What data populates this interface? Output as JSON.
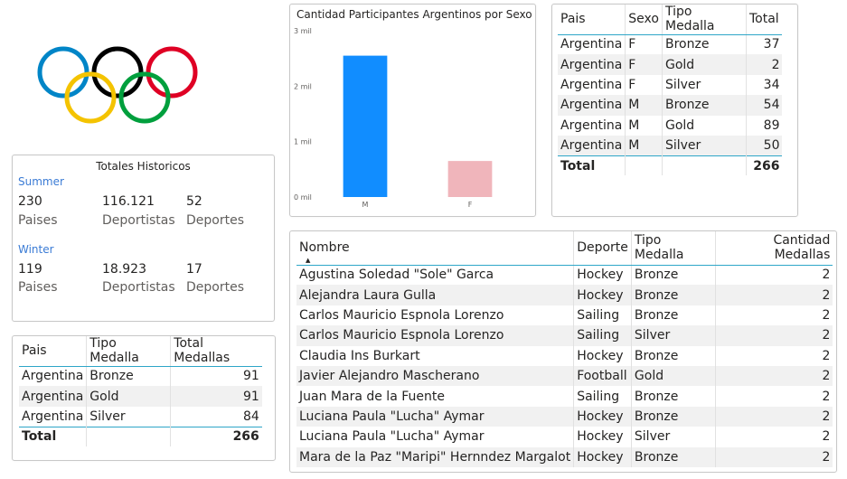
{
  "totales": {
    "title": "Totales Historicos",
    "summer": {
      "label": "Summer",
      "paises": "230",
      "paises_label": "Paises",
      "deportistas": "116.121",
      "deportistas_label": "Deportistas",
      "deportes": "52",
      "deportes_label": "Deportes"
    },
    "winter": {
      "label": "Winter",
      "paises": "119",
      "paises_label": "Paises",
      "deportistas": "18.923",
      "deportistas_label": "Deportistas",
      "deportes": "17",
      "deportes_label": "Deportes"
    }
  },
  "medals_table": {
    "headers": [
      "Pais",
      "Tipo Medalla",
      "Total Medallas"
    ],
    "rows": [
      [
        "Argentina",
        "Bronze",
        "91"
      ],
      [
        "Argentina",
        "Gold",
        "91"
      ],
      [
        "Argentina",
        "Silver",
        "84"
      ]
    ],
    "total_label": "Total",
    "total_value": "266"
  },
  "chart_data": {
    "type": "bar",
    "title": "Cantidad Participantes Argentinos por Sexo",
    "categories": [
      "M",
      "F"
    ],
    "values": [
      2550,
      650
    ],
    "ylim": [
      0,
      3000
    ],
    "yticks": [
      0,
      1000,
      2000,
      3000
    ],
    "ytick_labels": [
      "0 mil",
      "1 mil",
      "2 mil",
      "3 mil"
    ],
    "colors": [
      "#118DFF",
      "#F0B5BB"
    ],
    "xlabel": "",
    "ylabel": "",
    "grid": false
  },
  "sex_table": {
    "headers": [
      "Pais",
      "Sexo",
      "Tipo Medalla",
      "Total"
    ],
    "rows": [
      [
        "Argentina",
        "F",
        "Bronze",
        "37"
      ],
      [
        "Argentina",
        "F",
        "Gold",
        "2"
      ],
      [
        "Argentina",
        "F",
        "Silver",
        "34"
      ],
      [
        "Argentina",
        "M",
        "Bronze",
        "54"
      ],
      [
        "Argentina",
        "M",
        "Gold",
        "89"
      ],
      [
        "Argentina",
        "M",
        "Silver",
        "50"
      ]
    ],
    "total_label": "Total",
    "total_value": "266"
  },
  "athletes_table": {
    "headers": [
      "Nombre",
      "Deporte",
      "Tipo Medalla",
      "Cantidad Medallas"
    ],
    "sort_icon": "sort-ascending-icon",
    "rows": [
      [
        "Agustina Soledad \"Sole\" Garca",
        "Hockey",
        "Bronze",
        "2"
      ],
      [
        "Alejandra Laura Gulla",
        "Hockey",
        "Bronze",
        "2"
      ],
      [
        "Carlos Mauricio Espnola Lorenzo",
        "Sailing",
        "Bronze",
        "2"
      ],
      [
        "Carlos Mauricio Espnola Lorenzo",
        "Sailing",
        "Silver",
        "2"
      ],
      [
        "Claudia Ins Burkart",
        "Hockey",
        "Bronze",
        "2"
      ],
      [
        "Javier Alejandro Mascherano",
        "Football",
        "Gold",
        "2"
      ],
      [
        "Juan Mara de la Fuente",
        "Sailing",
        "Bronze",
        "2"
      ],
      [
        "Luciana Paula \"Lucha\" Aymar",
        "Hockey",
        "Bronze",
        "2"
      ],
      [
        "Luciana Paula \"Lucha\" Aymar",
        "Hockey",
        "Silver",
        "2"
      ],
      [
        "Mara de la Paz \"Maripi\" Hernndez Margalot",
        "Hockey",
        "Bronze",
        "2"
      ]
    ]
  },
  "logo": {
    "icon": "olympic-rings-icon",
    "colors": [
      "#0085C7",
      "#000000",
      "#DF0024",
      "#F4C300",
      "#009F3D"
    ]
  }
}
